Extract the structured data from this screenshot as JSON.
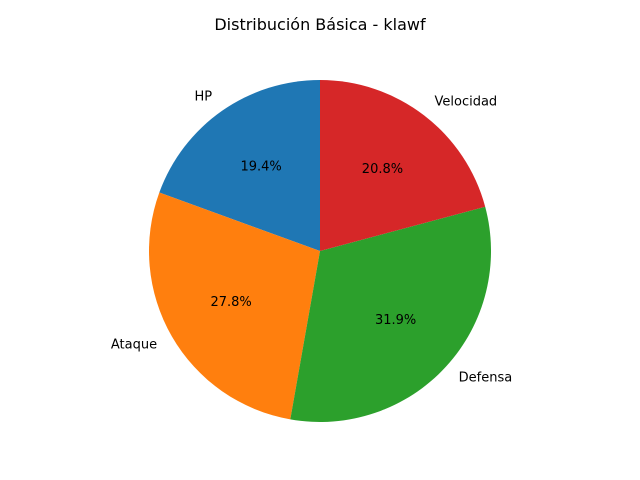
{
  "chart_data": {
    "type": "pie",
    "title": "Distribución Básica - klawf",
    "categories": [
      "HP",
      "Ataque",
      "Defensa",
      "Velocidad"
    ],
    "values": [
      70,
      100,
      115,
      75
    ],
    "percent_labels": [
      "19.4%",
      "27.8%",
      "31.9%",
      "20.8%"
    ],
    "colors": [
      "#1f77b4",
      "#ff7f0e",
      "#2ca02c",
      "#d62728"
    ],
    "start_angle_deg": 90,
    "direction": "counterclockwise",
    "legend": "none"
  }
}
